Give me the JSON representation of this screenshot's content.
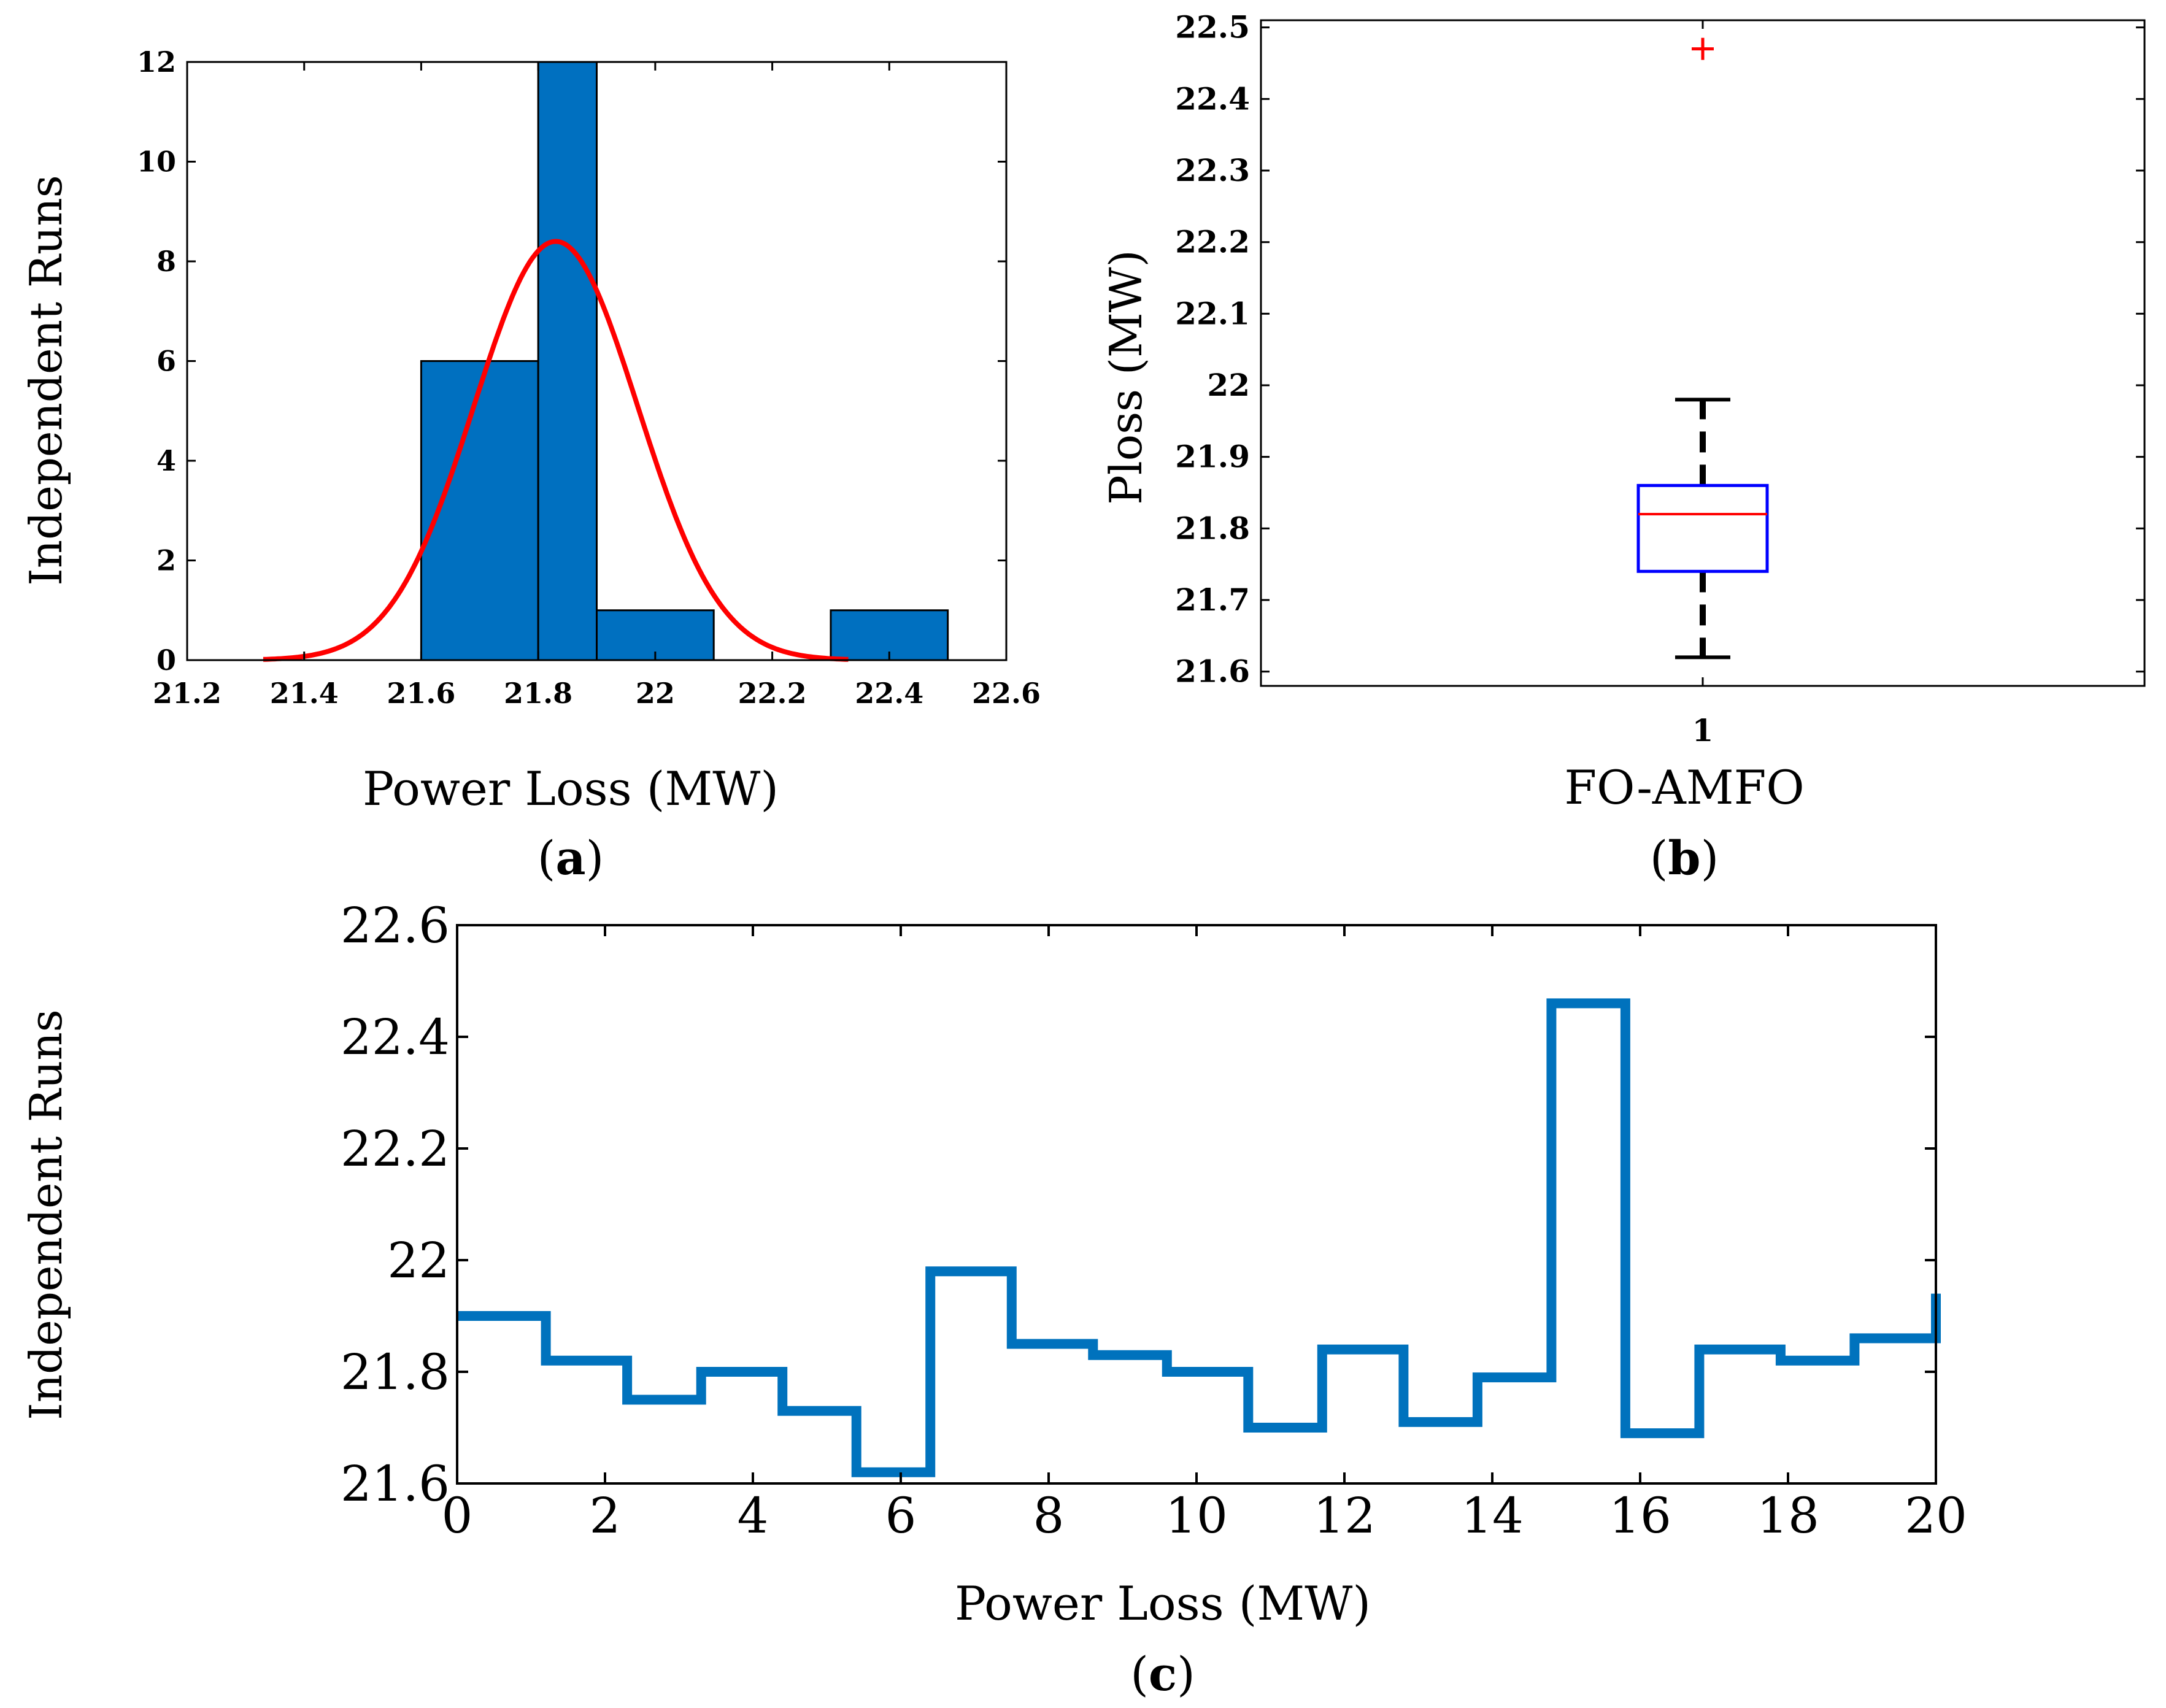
{
  "chart_data": [
    {
      "id": "a",
      "type": "bar",
      "subtype": "histogram-with-normal-fit",
      "xlabel": "Power Loss (MW)",
      "ylabel": "Independent Runs",
      "xlim": [
        21.2,
        22.6
      ],
      "ylim": [
        0,
        12
      ],
      "xticks": [
        "21.2",
        "21.4",
        "21.6",
        "21.8",
        "22",
        "22.2",
        "22.4",
        "22.6"
      ],
      "yticks": [
        "0",
        "2",
        "4",
        "6",
        "8",
        "10",
        "12"
      ],
      "bins": [
        {
          "start": 21.6,
          "end": 21.8,
          "count": 6
        },
        {
          "start": 21.8,
          "end": 21.9,
          "count": 12
        },
        {
          "start": 21.9,
          "end": 22.1,
          "count": 1
        },
        {
          "start": 22.3,
          "end": 22.5,
          "count": 1
        }
      ],
      "fit": {
        "mean": 21.83,
        "sd": 0.14,
        "peak": 8.4,
        "x_start": 21.33,
        "x_end": 22.33
      },
      "bar_color": "#0070c0",
      "fit_color": "#ff0000",
      "panel_label": {
        "open": "(",
        "letter": "a",
        "close": ")"
      }
    },
    {
      "id": "b",
      "type": "box",
      "xlabel": "FO-AMFO",
      "ylabel": "Ploss (MW)",
      "ylim": [
        21.58,
        22.51
      ],
      "yticks": [
        "21.6",
        "21.7",
        "21.8",
        "21.9",
        "22",
        "22.1",
        "22.2",
        "22.3",
        "22.4",
        "22.5"
      ],
      "xticks": [
        "1"
      ],
      "box": {
        "q1": 21.74,
        "median": 21.82,
        "q3": 21.86,
        "whisker_low": 21.62,
        "whisker_high": 21.98
      },
      "outliers": [
        22.47
      ],
      "box_color": "#0000ff",
      "median_color": "#ff0000",
      "whisker_color": "#000000",
      "outlier_color": "#ff0000",
      "panel_label": {
        "open": "(",
        "letter": "b",
        "close": ")"
      }
    },
    {
      "id": "c",
      "type": "line",
      "subtype": "stairs",
      "xlabel": "Power Loss (MW)",
      "ylabel": "Independent Runs",
      "xlim": [
        0,
        20
      ],
      "ylim": [
        21.6,
        22.6
      ],
      "xticks": [
        "0",
        "2",
        "4",
        "6",
        "8",
        "10",
        "12",
        "14",
        "16",
        "18",
        "20"
      ],
      "yticks": [
        "21.6",
        "21.8",
        "22",
        "22.2",
        "22.4",
        "22.6"
      ],
      "x": [
        0,
        1.2,
        2.3,
        3.3,
        4.4,
        5.4,
        6.4,
        7.5,
        8.6,
        9.6,
        10.7,
        11.7,
        12.8,
        13.8,
        14.8,
        15.8,
        16.8,
        17.9,
        18.9,
        20
      ],
      "y": [
        21.9,
        21.82,
        21.75,
        21.8,
        21.73,
        21.62,
        21.98,
        21.85,
        21.83,
        21.8,
        21.7,
        21.84,
        21.71,
        21.79,
        22.46,
        21.69,
        21.84,
        21.82,
        21.86,
        21.94
      ],
      "line_color": "#0072bd",
      "panel_label": {
        "open": "(",
        "letter": "c",
        "close": ")"
      }
    }
  ]
}
